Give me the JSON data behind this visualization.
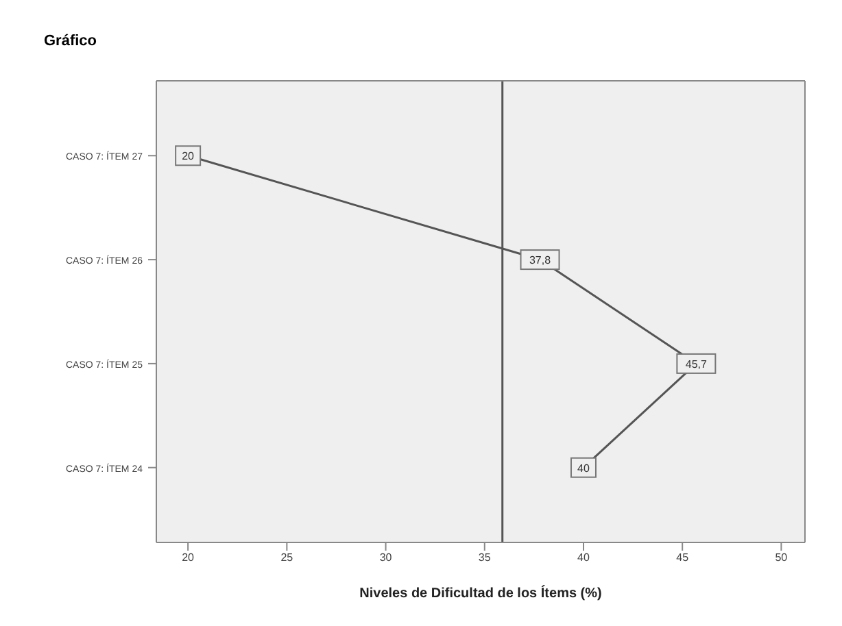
{
  "chart_data": {
    "type": "line",
    "title": "Gráfico",
    "xlabel": "Niveles de Dificultad de los Ítems (%)",
    "orientation": "horizontal",
    "categories": [
      "CASO 7: ÍTEM 27",
      "CASO 7: ÍTEM 26",
      "CASO 7: ÍTEM 25",
      "CASO 7: ÍTEM 24"
    ],
    "series": [
      {
        "color": "#555555",
        "values": [
          20,
          37.8,
          45.7,
          40
        ],
        "value_labels": [
          "20",
          "37,8",
          "45,7",
          "40"
        ]
      }
    ],
    "xlim": [
      18.4,
      51.2
    ],
    "xticks": [
      20,
      25,
      30,
      35,
      40,
      45,
      50
    ],
    "ref_lines": [
      {
        "axis": "x",
        "value": 35.9,
        "color": "#555555"
      }
    ],
    "grid": false,
    "marker": "square",
    "line_style": "solid"
  }
}
